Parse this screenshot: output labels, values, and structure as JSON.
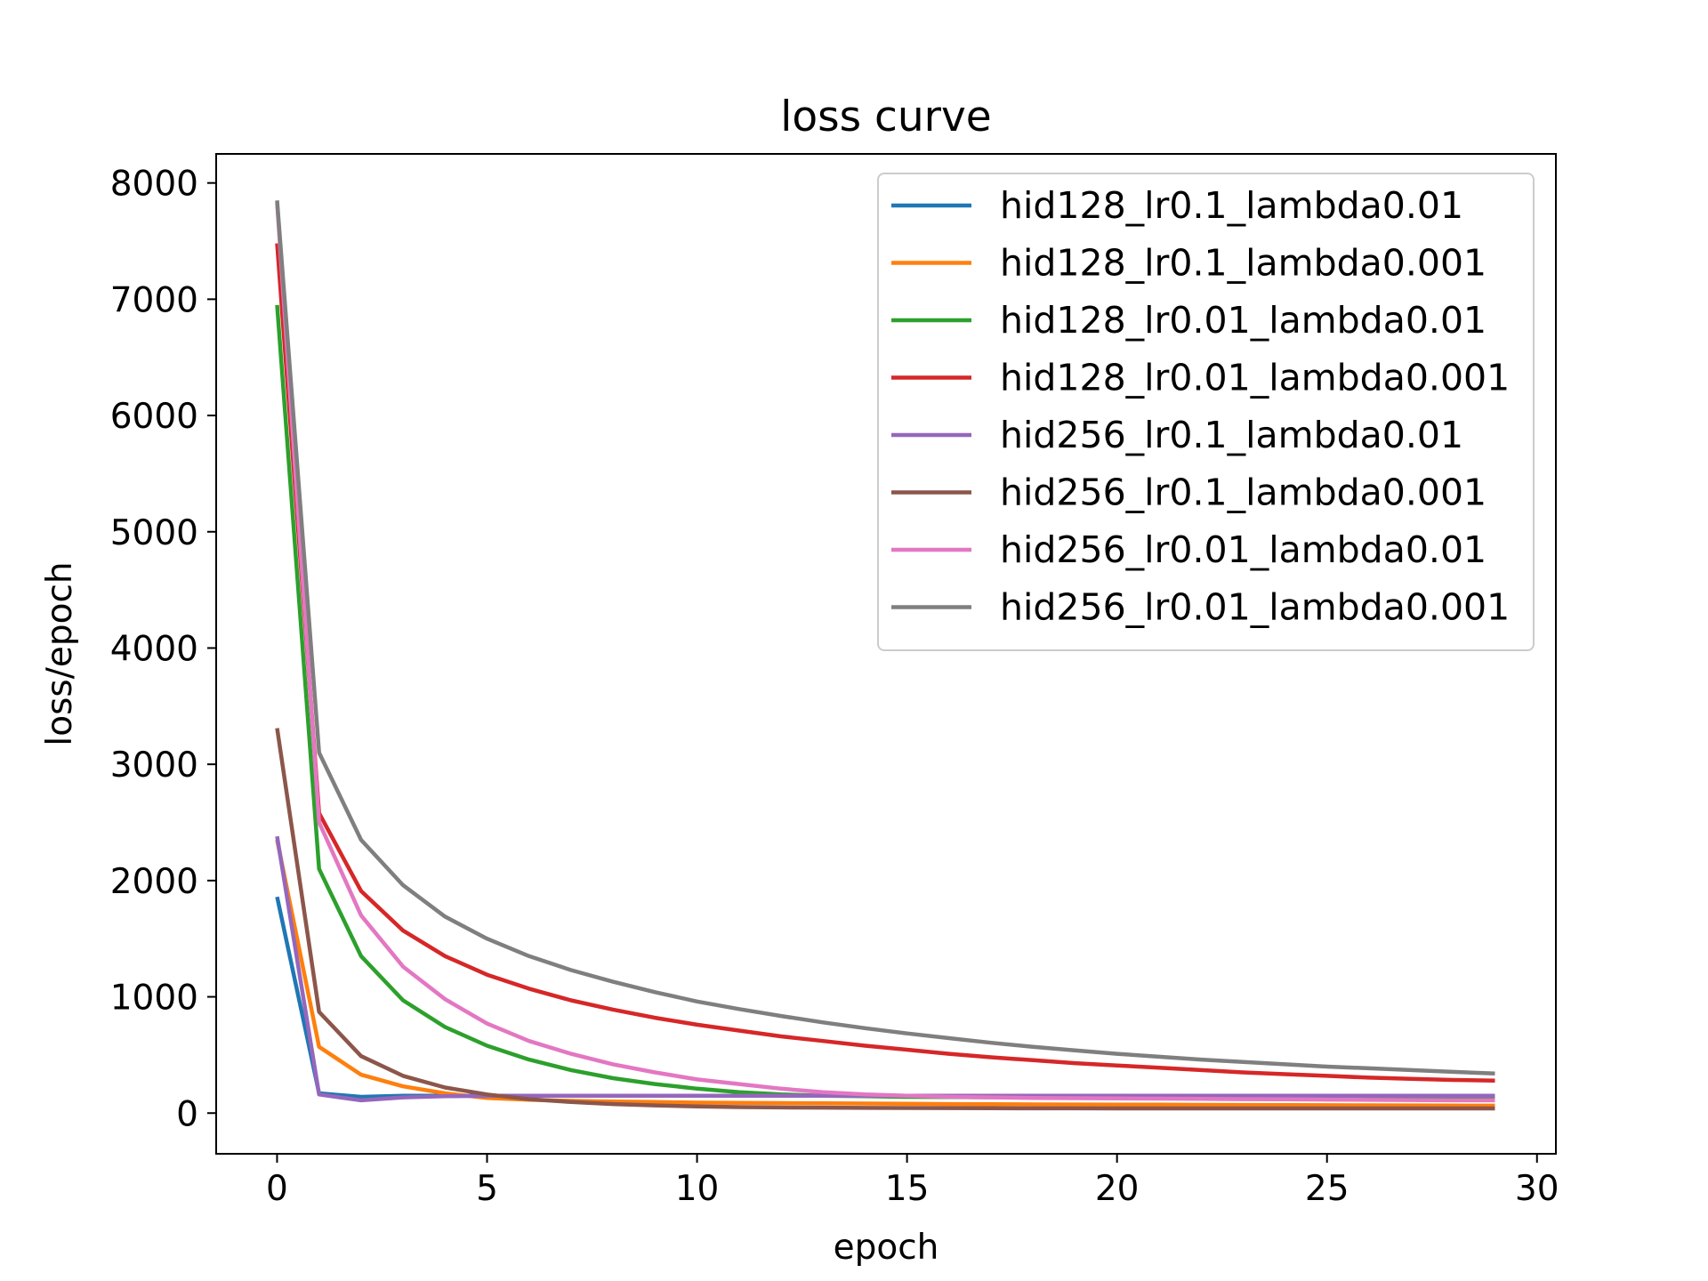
{
  "chart_data": {
    "type": "line",
    "title": "loss curve",
    "xlabel": "epoch",
    "ylabel": "loss/epoch",
    "xlim": [
      -1.45,
      30.45
    ],
    "ylim": [
      -350,
      8250
    ],
    "xticks": [
      "0",
      "5",
      "10",
      "15",
      "20",
      "25",
      "30"
    ],
    "yticks": [
      "0",
      "1000",
      "2000",
      "3000",
      "4000",
      "5000",
      "6000",
      "7000",
      "8000"
    ],
    "grid": false,
    "legend_position": "top-right",
    "x": [
      0,
      1,
      2,
      3,
      4,
      5,
      6,
      7,
      8,
      9,
      10,
      11,
      12,
      13,
      14,
      15,
      16,
      17,
      18,
      19,
      20,
      21,
      22,
      23,
      24,
      25,
      26,
      27,
      28,
      29
    ],
    "series": [
      {
        "name": "hid128_lr0.1_lambda0.01",
        "color": "#1f77b4",
        "values": [
          1860,
          170,
          140,
          150,
          150,
          150,
          150,
          150,
          150,
          150,
          150,
          150,
          150,
          150,
          150,
          150,
          150,
          150,
          150,
          150,
          150,
          150,
          150,
          150,
          150,
          150,
          150,
          150,
          150,
          150
        ]
      },
      {
        "name": "hid128_lr0.1_lambda0.001",
        "color": "#ff7f0e",
        "values": [
          2350,
          570,
          330,
          230,
          170,
          130,
          115,
          105,
          100,
          95,
          90,
          88,
          86,
          84,
          82,
          80,
          78,
          76,
          75,
          74,
          73,
          72,
          71,
          70,
          69,
          68,
          67,
          66,
          65,
          64
        ]
      },
      {
        "name": "hid128_lr0.01_lambda0.01",
        "color": "#2ca02c",
        "values": [
          6950,
          2100,
          1350,
          970,
          740,
          580,
          460,
          370,
          300,
          250,
          210,
          180,
          160,
          150,
          145,
          140,
          138,
          136,
          134,
          132,
          130,
          128,
          126,
          124,
          122,
          120,
          118,
          116,
          115,
          115
        ]
      },
      {
        "name": "hid128_lr0.01_lambda0.001",
        "color": "#d62728",
        "values": [
          7480,
          2580,
          1910,
          1570,
          1350,
          1190,
          1070,
          970,
          890,
          820,
          760,
          710,
          660,
          620,
          580,
          545,
          510,
          480,
          455,
          430,
          410,
          390,
          370,
          350,
          335,
          320,
          305,
          295,
          285,
          280
        ]
      },
      {
        "name": "hid256_lr0.1_lambda0.01",
        "color": "#9467bd",
        "values": [
          2380,
          160,
          110,
          135,
          145,
          148,
          150,
          150,
          150,
          150,
          150,
          150,
          150,
          150,
          150,
          150,
          150,
          150,
          150,
          150,
          150,
          150,
          150,
          150,
          150,
          150,
          150,
          150,
          150,
          150
        ]
      },
      {
        "name": "hid256_lr0.1_lambda0.001",
        "color": "#8c564b",
        "values": [
          3310,
          870,
          490,
          320,
          220,
          160,
          120,
          95,
          78,
          66,
          58,
          52,
          49,
          47,
          45,
          44,
          43,
          42,
          41,
          41,
          40,
          40,
          40,
          40,
          40,
          40,
          40,
          40,
          40,
          40
        ]
      },
      {
        "name": "hid256_lr0.01_lambda0.01",
        "color": "#e377c2",
        "values": [
          7830,
          2500,
          1700,
          1260,
          980,
          770,
          620,
          510,
          420,
          350,
          290,
          250,
          210,
          180,
          160,
          150,
          140,
          135,
          130,
          128,
          126,
          124,
          122,
          120,
          118,
          116,
          114,
          112,
          110,
          110
        ]
      },
      {
        "name": "hid256_lr0.01_lambda0.001",
        "color": "#7f7f7f",
        "values": [
          7850,
          3100,
          2350,
          1960,
          1690,
          1500,
          1350,
          1230,
          1130,
          1040,
          960,
          895,
          835,
          780,
          730,
          685,
          645,
          605,
          570,
          540,
          510,
          485,
          460,
          440,
          420,
          400,
          385,
          370,
          355,
          340
        ]
      }
    ]
  }
}
